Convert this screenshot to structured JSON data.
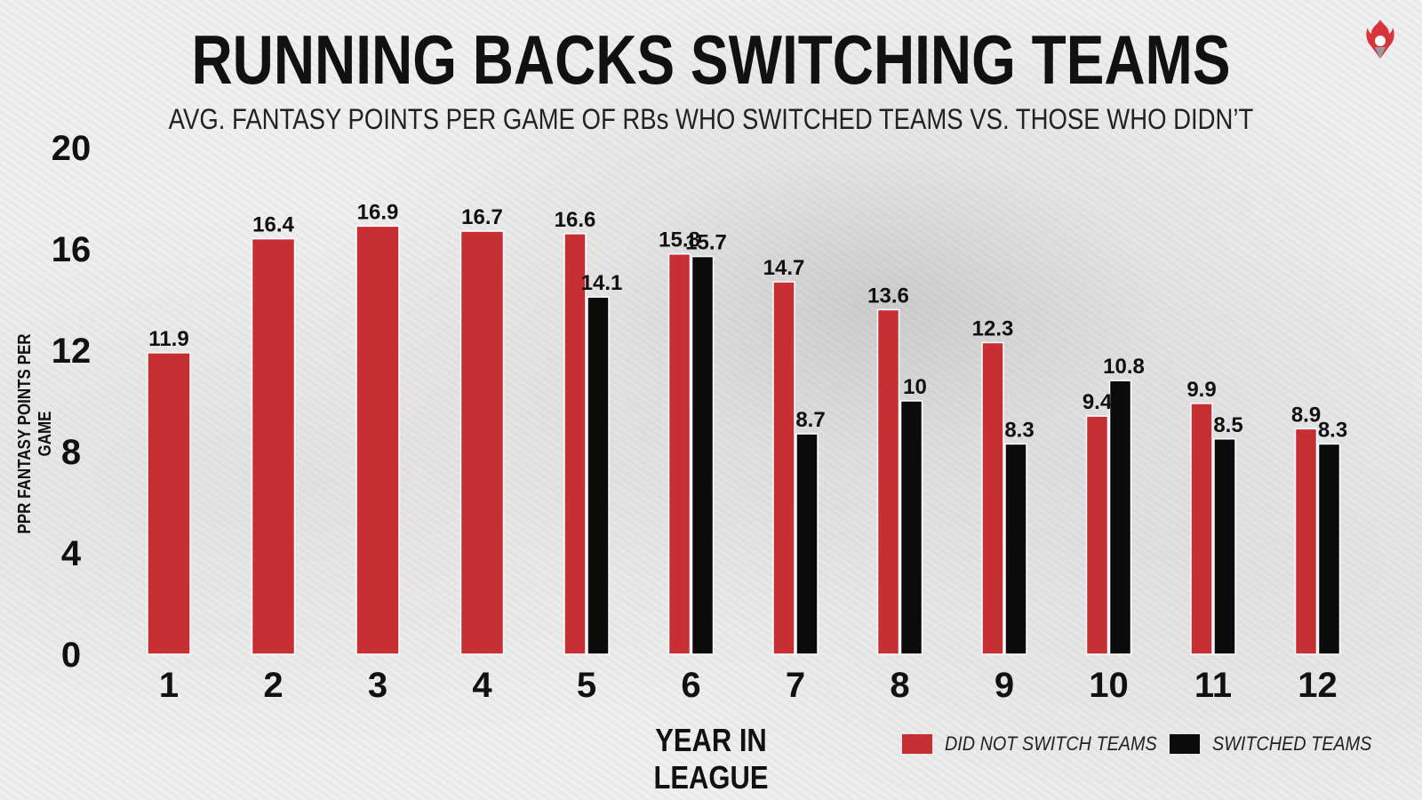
{
  "title": "RUNNING BACKS SWITCHING TEAMS",
  "subtitle": "AVG. FANTASY POINTS PER GAME OF RBs WHO SWITCHED TEAMS VS. THOSE WHO DIDN’T",
  "logo_icon": "flame-logo-icon",
  "colors": {
    "not_switched": "#c62f33",
    "switched": "#0b0b0b",
    "text": "#111111"
  },
  "chart_data": {
    "type": "bar",
    "title": "RUNNING BACKS SWITCHING TEAMS",
    "subtitle": "AVG. FANTASY POINTS PER GAME OF RBs WHO SWITCHED TEAMS VS. THOSE WHO DIDN’T",
    "xlabel": "YEAR IN LEAGUE",
    "ylabel": "PPR FANTASY POINTS PER GAME",
    "ylim": [
      0,
      20
    ],
    "yticks": [
      "0",
      "4",
      "8",
      "12",
      "16",
      "20"
    ],
    "categories": [
      "1",
      "2",
      "3",
      "4",
      "5",
      "6",
      "7",
      "8",
      "9",
      "10",
      "11",
      "12"
    ],
    "series": [
      {
        "name": "DID NOT SWITCH TEAMS",
        "color": "#c62f33",
        "values": [
          11.9,
          16.4,
          16.9,
          16.7,
          16.6,
          15.8,
          14.7,
          13.6,
          12.3,
          9.4,
          9.9,
          8.9
        ],
        "labels": [
          "11.9",
          "16.4",
          "16.9",
          "16.7",
          "16.6",
          "15.8",
          "14.7",
          "13.6",
          "12.3",
          "9.4",
          "9.9",
          "8.9"
        ]
      },
      {
        "name": "SWITCHED TEAMS",
        "color": "#0b0b0b",
        "values": [
          null,
          null,
          null,
          null,
          14.1,
          15.7,
          8.7,
          10,
          8.3,
          10.8,
          8.5,
          8.3
        ],
        "labels": [
          "",
          "",
          "",
          "",
          "14.1",
          "15.7",
          "8.7",
          "10",
          "8.3",
          "10.8",
          "8.5",
          "8.3"
        ]
      }
    ],
    "legend_position": "bottom-right",
    "grid": false
  }
}
